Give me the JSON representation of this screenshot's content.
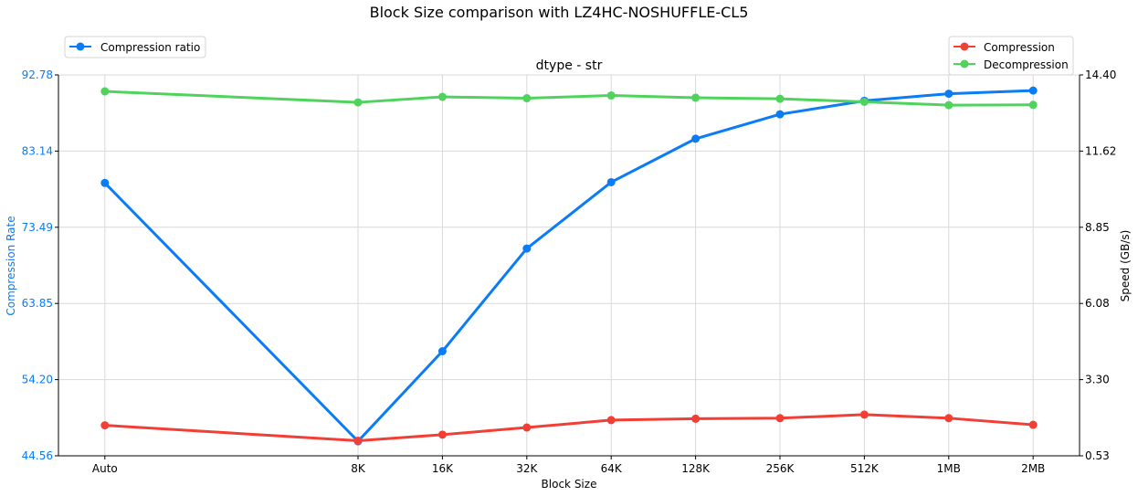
{
  "chart_data": {
    "type": "line",
    "title": "Block Size comparison with LZ4HC-NOSHUFFLE-CL5",
    "subtitle": "dtype - str",
    "xlabel": "Block Size",
    "ylabel_left": "Compression Rate",
    "ylabel_right": "Speed (GB/s)",
    "categories": [
      "Auto",
      "8K",
      "16K",
      "32K",
      "64K",
      "128K",
      "256K",
      "512K",
      "1MB",
      "2MB"
    ],
    "x_positions": [
      0,
      3,
      4,
      5,
      6,
      7,
      8,
      9,
      10,
      11
    ],
    "x_range": [
      -0.55,
      11.55
    ],
    "left_axis": {
      "range": [
        44.56,
        92.78
      ],
      "ticks": [
        "44.56",
        "54.20",
        "63.85",
        "73.49",
        "83.14",
        "92.78"
      ]
    },
    "right_axis": {
      "range": [
        0.53,
        14.4
      ],
      "ticks": [
        "0.53",
        "3.30",
        "6.08",
        "8.85",
        "11.62",
        "14.40"
      ]
    },
    "grid": true,
    "series": [
      {
        "name": "Compression ratio",
        "axis": "left",
        "color": "#0a7cf5",
        "values": [
          79.1,
          46.4,
          57.8,
          70.8,
          79.2,
          84.7,
          87.8,
          89.5,
          90.4,
          90.8
        ]
      },
      {
        "name": "Compression",
        "axis": "right",
        "color": "#f23f36",
        "values": [
          1.64,
          1.08,
          1.3,
          1.56,
          1.83,
          1.88,
          1.9,
          2.03,
          1.9,
          1.66
        ]
      },
      {
        "name": "Decompression",
        "axis": "right",
        "color": "#4fd35c",
        "values": [
          13.8,
          13.4,
          13.6,
          13.55,
          13.65,
          13.57,
          13.53,
          13.42,
          13.3,
          13.31
        ]
      }
    ],
    "legends": [
      {
        "placement": "top-left",
        "entries": [
          "Compression ratio"
        ]
      },
      {
        "placement": "top-right",
        "entries": [
          "Compression",
          "Decompression"
        ]
      }
    ]
  },
  "colors": {
    "left_axis": "#0a7cf5",
    "grid": "#d9d9d9",
    "axis": "#000000"
  }
}
